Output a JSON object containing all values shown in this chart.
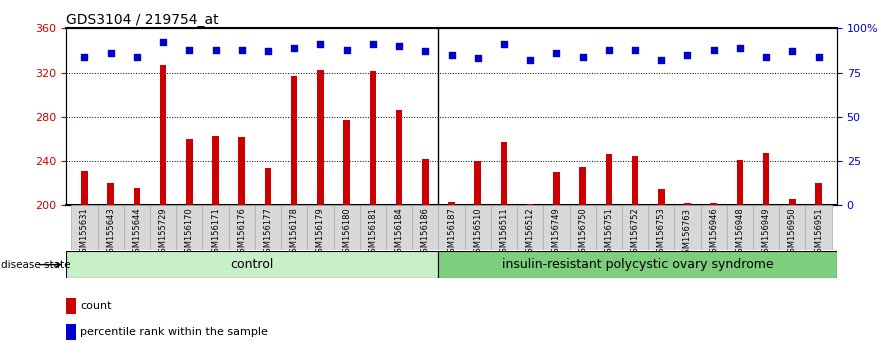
{
  "title": "GDS3104 / 219754_at",
  "samples": [
    "GSM155631",
    "GSM155643",
    "GSM155644",
    "GSM155729",
    "GSM156170",
    "GSM156171",
    "GSM156176",
    "GSM156177",
    "GSM156178",
    "GSM156179",
    "GSM156180",
    "GSM156181",
    "GSM156184",
    "GSM156186",
    "GSM156187",
    "GSM156510",
    "GSM156511",
    "GSM156512",
    "GSM156749",
    "GSM156750",
    "GSM156751",
    "GSM156752",
    "GSM156753",
    "GSM156763",
    "GSM156946",
    "GSM156948",
    "GSM156949",
    "GSM156950",
    "GSM156951"
  ],
  "counts": [
    231,
    220,
    216,
    327,
    260,
    263,
    262,
    234,
    317,
    322,
    277,
    321,
    286,
    242,
    203,
    240,
    257,
    201,
    230,
    235,
    246,
    245,
    215,
    202,
    202,
    241,
    247,
    206,
    220
  ],
  "percentile_pct": [
    84,
    86,
    84,
    92,
    88,
    88,
    88,
    87,
    89,
    91,
    88,
    91,
    90,
    87,
    85,
    83,
    91,
    82,
    86,
    84,
    88,
    88,
    82,
    85,
    88,
    89,
    84,
    87,
    84
  ],
  "n_control": 14,
  "control_label": "control",
  "disease_label": "insulin-resistant polycystic ovary syndrome",
  "bar_color": "#CC0000",
  "dot_color": "#0000CC",
  "ymin": 200,
  "ymax": 360,
  "yticks_left": [
    200,
    240,
    280,
    320,
    360
  ],
  "pct_ticks": [
    0,
    25,
    50,
    75,
    100
  ],
  "pct_tick_labels": [
    "0",
    "25",
    "50",
    "75",
    "100%"
  ],
  "grid_values": [
    240,
    280,
    320
  ],
  "control_bg": "#c8f0c8",
  "disease_bg": "#7dce7d",
  "bar_color_left": "#CC0000",
  "tick_color_right": "#0000CC"
}
